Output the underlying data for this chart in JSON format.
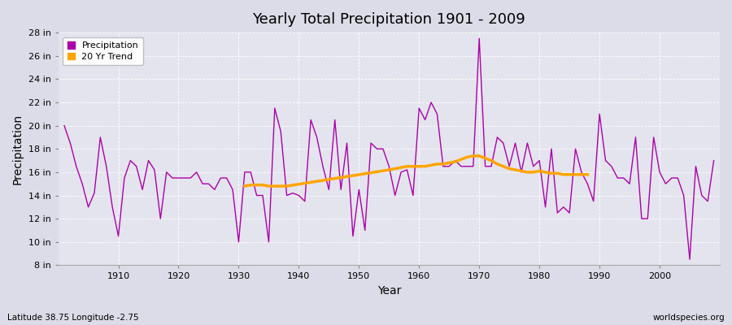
{
  "title": "Yearly Total Precipitation 1901 - 2009",
  "xlabel": "Year",
  "ylabel": "Precipitation",
  "lat_lon_label": "Latitude 38.75 Longitude -2.75",
  "watermark": "worldspecies.org",
  "precip_color": "#aa00aa",
  "trend_color": "#FFA500",
  "fig_bg_color": "#dcdce8",
  "plot_bg_color": "#e4e4ee",
  "years": [
    1901,
    1902,
    1903,
    1904,
    1905,
    1906,
    1907,
    1908,
    1909,
    1910,
    1911,
    1912,
    1913,
    1914,
    1915,
    1916,
    1917,
    1918,
    1919,
    1920,
    1921,
    1922,
    1923,
    1924,
    1925,
    1926,
    1927,
    1928,
    1929,
    1930,
    1931,
    1932,
    1933,
    1934,
    1935,
    1936,
    1937,
    1938,
    1939,
    1940,
    1941,
    1942,
    1943,
    1944,
    1945,
    1946,
    1947,
    1948,
    1949,
    1950,
    1951,
    1952,
    1953,
    1954,
    1955,
    1956,
    1957,
    1958,
    1959,
    1960,
    1961,
    1962,
    1963,
    1964,
    1965,
    1966,
    1967,
    1968,
    1969,
    1970,
    1971,
    1972,
    1973,
    1974,
    1975,
    1976,
    1977,
    1978,
    1979,
    1980,
    1981,
    1982,
    1983,
    1984,
    1985,
    1986,
    1987,
    1988,
    1989,
    1990,
    1991,
    1992,
    1993,
    1994,
    1995,
    1996,
    1997,
    1998,
    1999,
    2000,
    2001,
    2002,
    2003,
    2004,
    2005,
    2006,
    2007,
    2008,
    2009
  ],
  "precip": [
    20.0,
    18.5,
    16.5,
    15.0,
    13.0,
    14.2,
    19.0,
    16.5,
    13.0,
    10.5,
    15.5,
    17.0,
    16.5,
    14.5,
    17.0,
    16.2,
    12.0,
    16.0,
    15.5,
    15.5,
    15.5,
    15.5,
    16.0,
    15.0,
    15.0,
    14.5,
    15.5,
    15.5,
    14.5,
    10.0,
    16.0,
    16.0,
    14.0,
    14.0,
    10.0,
    21.5,
    19.5,
    14.0,
    14.2,
    14.0,
    13.5,
    20.5,
    19.0,
    16.5,
    14.5,
    20.5,
    14.5,
    18.5,
    10.5,
    14.5,
    11.0,
    18.5,
    18.0,
    18.0,
    16.5,
    14.0,
    16.0,
    16.2,
    14.0,
    21.5,
    20.5,
    22.0,
    21.0,
    16.5,
    16.5,
    17.0,
    16.5,
    16.5,
    16.5,
    27.5,
    16.5,
    16.5,
    19.0,
    18.5,
    16.5,
    18.5,
    16.0,
    18.5,
    16.5,
    17.0,
    13.0,
    18.0,
    12.5,
    13.0,
    12.5,
    18.0,
    16.0,
    15.0,
    13.5,
    21.0,
    17.0,
    16.5,
    15.5,
    15.5,
    15.0,
    19.0,
    12.0,
    12.0,
    19.0,
    16.0,
    15.0,
    15.5,
    15.5,
    14.0,
    8.5,
    16.5,
    14.0,
    13.5,
    17.0
  ],
  "trend_years": [
    1931,
    1932,
    1933,
    1934,
    1935,
    1936,
    1937,
    1938,
    1955,
    1956,
    1957,
    1958,
    1959,
    1960,
    1961,
    1962,
    1963,
    1964,
    1965,
    1966,
    1967,
    1968,
    1969,
    1970,
    1971,
    1972,
    1973,
    1974,
    1975,
    1976,
    1977,
    1978,
    1979,
    1980,
    1981,
    1982,
    1983,
    1984,
    1985,
    1986,
    1987,
    1988
  ],
  "trend_values": [
    14.8,
    14.9,
    14.9,
    14.9,
    14.8,
    14.8,
    14.8,
    14.8,
    16.2,
    16.3,
    16.4,
    16.5,
    16.5,
    16.5,
    16.5,
    16.6,
    16.7,
    16.7,
    16.8,
    16.9,
    17.1,
    17.3,
    17.4,
    17.4,
    17.2,
    17.0,
    16.7,
    16.5,
    16.3,
    16.2,
    16.1,
    16.0,
    16.0,
    16.1,
    16.0,
    15.9,
    15.9,
    15.8,
    15.8,
    15.8,
    15.8,
    15.8
  ],
  "ylim": [
    8,
    28
  ],
  "yticks": [
    8,
    10,
    12,
    14,
    16,
    18,
    20,
    22,
    24,
    26,
    28
  ],
  "xlim": [
    1900,
    2010
  ]
}
